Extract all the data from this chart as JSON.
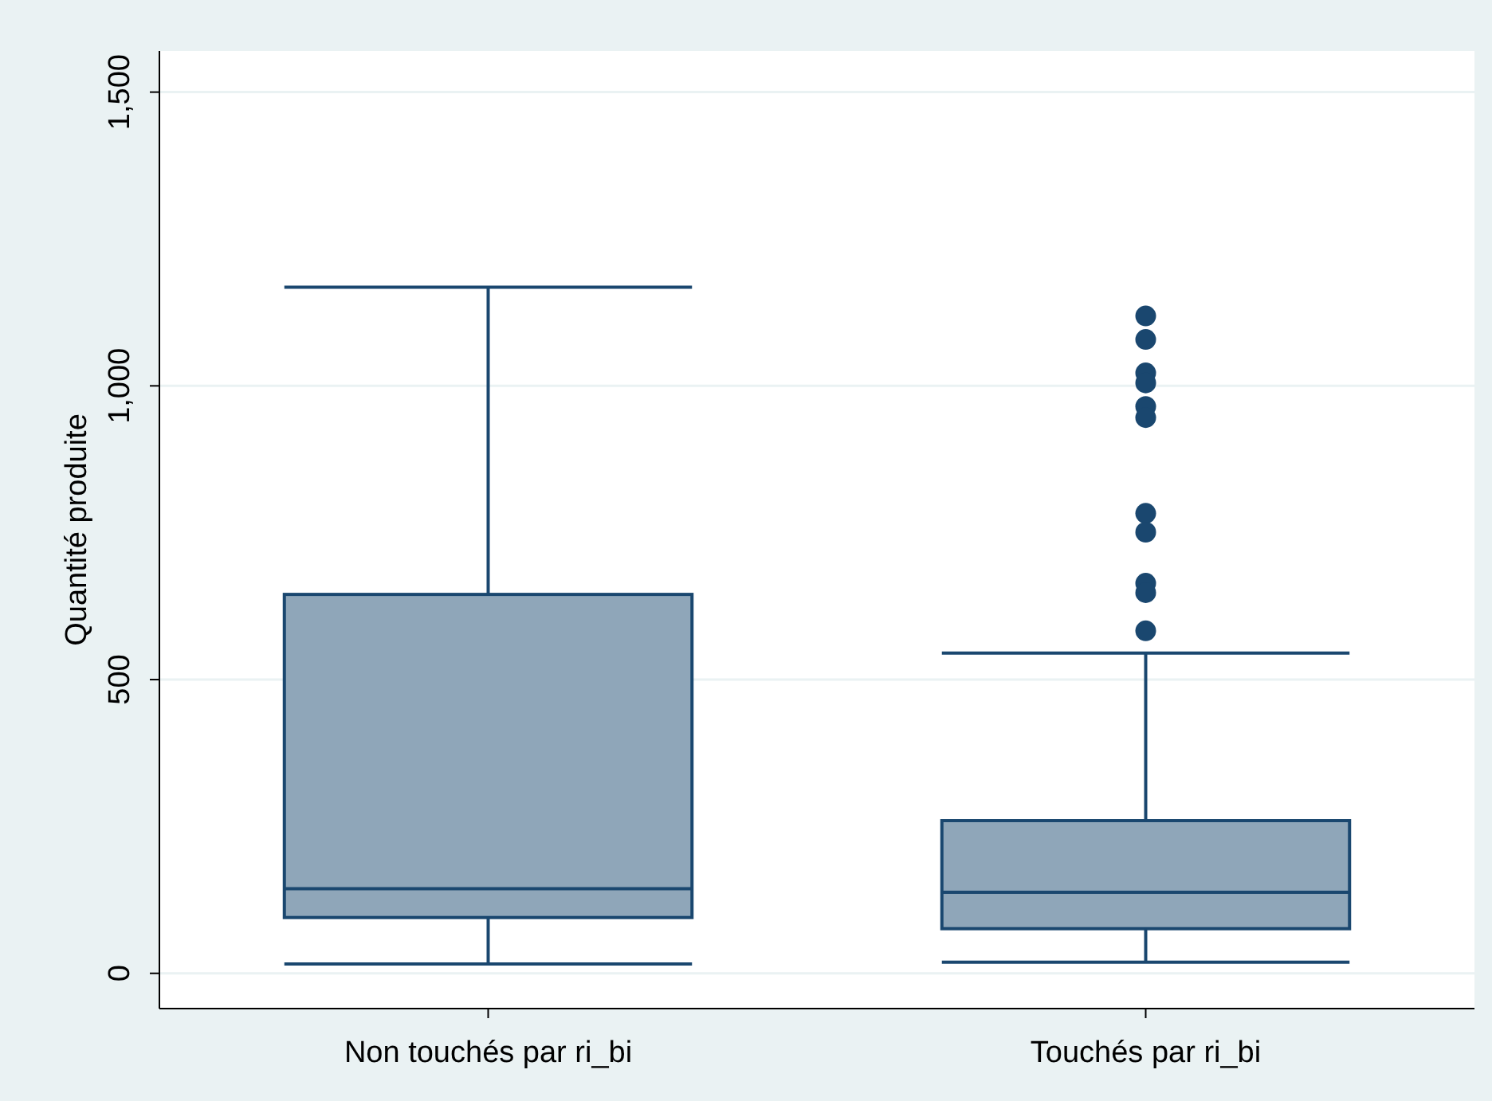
{
  "chart_data": {
    "type": "box",
    "ylabel": "Quantité produite",
    "categories": [
      "Non touchés par ri_bi",
      "Touchés par ri_bi"
    ],
    "series": [
      {
        "color": "#8fa6b9",
        "boxes": [
          {
            "low": 16,
            "q1": 95,
            "median": 144,
            "q3": 645,
            "high": 1168
          },
          {
            "low": 19,
            "q1": 76,
            "median": 138,
            "q3": 260,
            "high": 545,
            "outliers": [
              1119,
              1079,
              1022,
              1005,
              965,
              946,
              783,
              751,
              664,
              648,
              583
            ]
          }
        ]
      }
    ],
    "ylim": [
      -60,
      1570
    ],
    "yticks": [
      0,
      {
        "value": 500,
        "label": "500"
      },
      {
        "value": 1000,
        "label": "1,000"
      },
      {
        "value": 1500,
        "label": "1,500"
      }
    ],
    "grid": "y"
  }
}
